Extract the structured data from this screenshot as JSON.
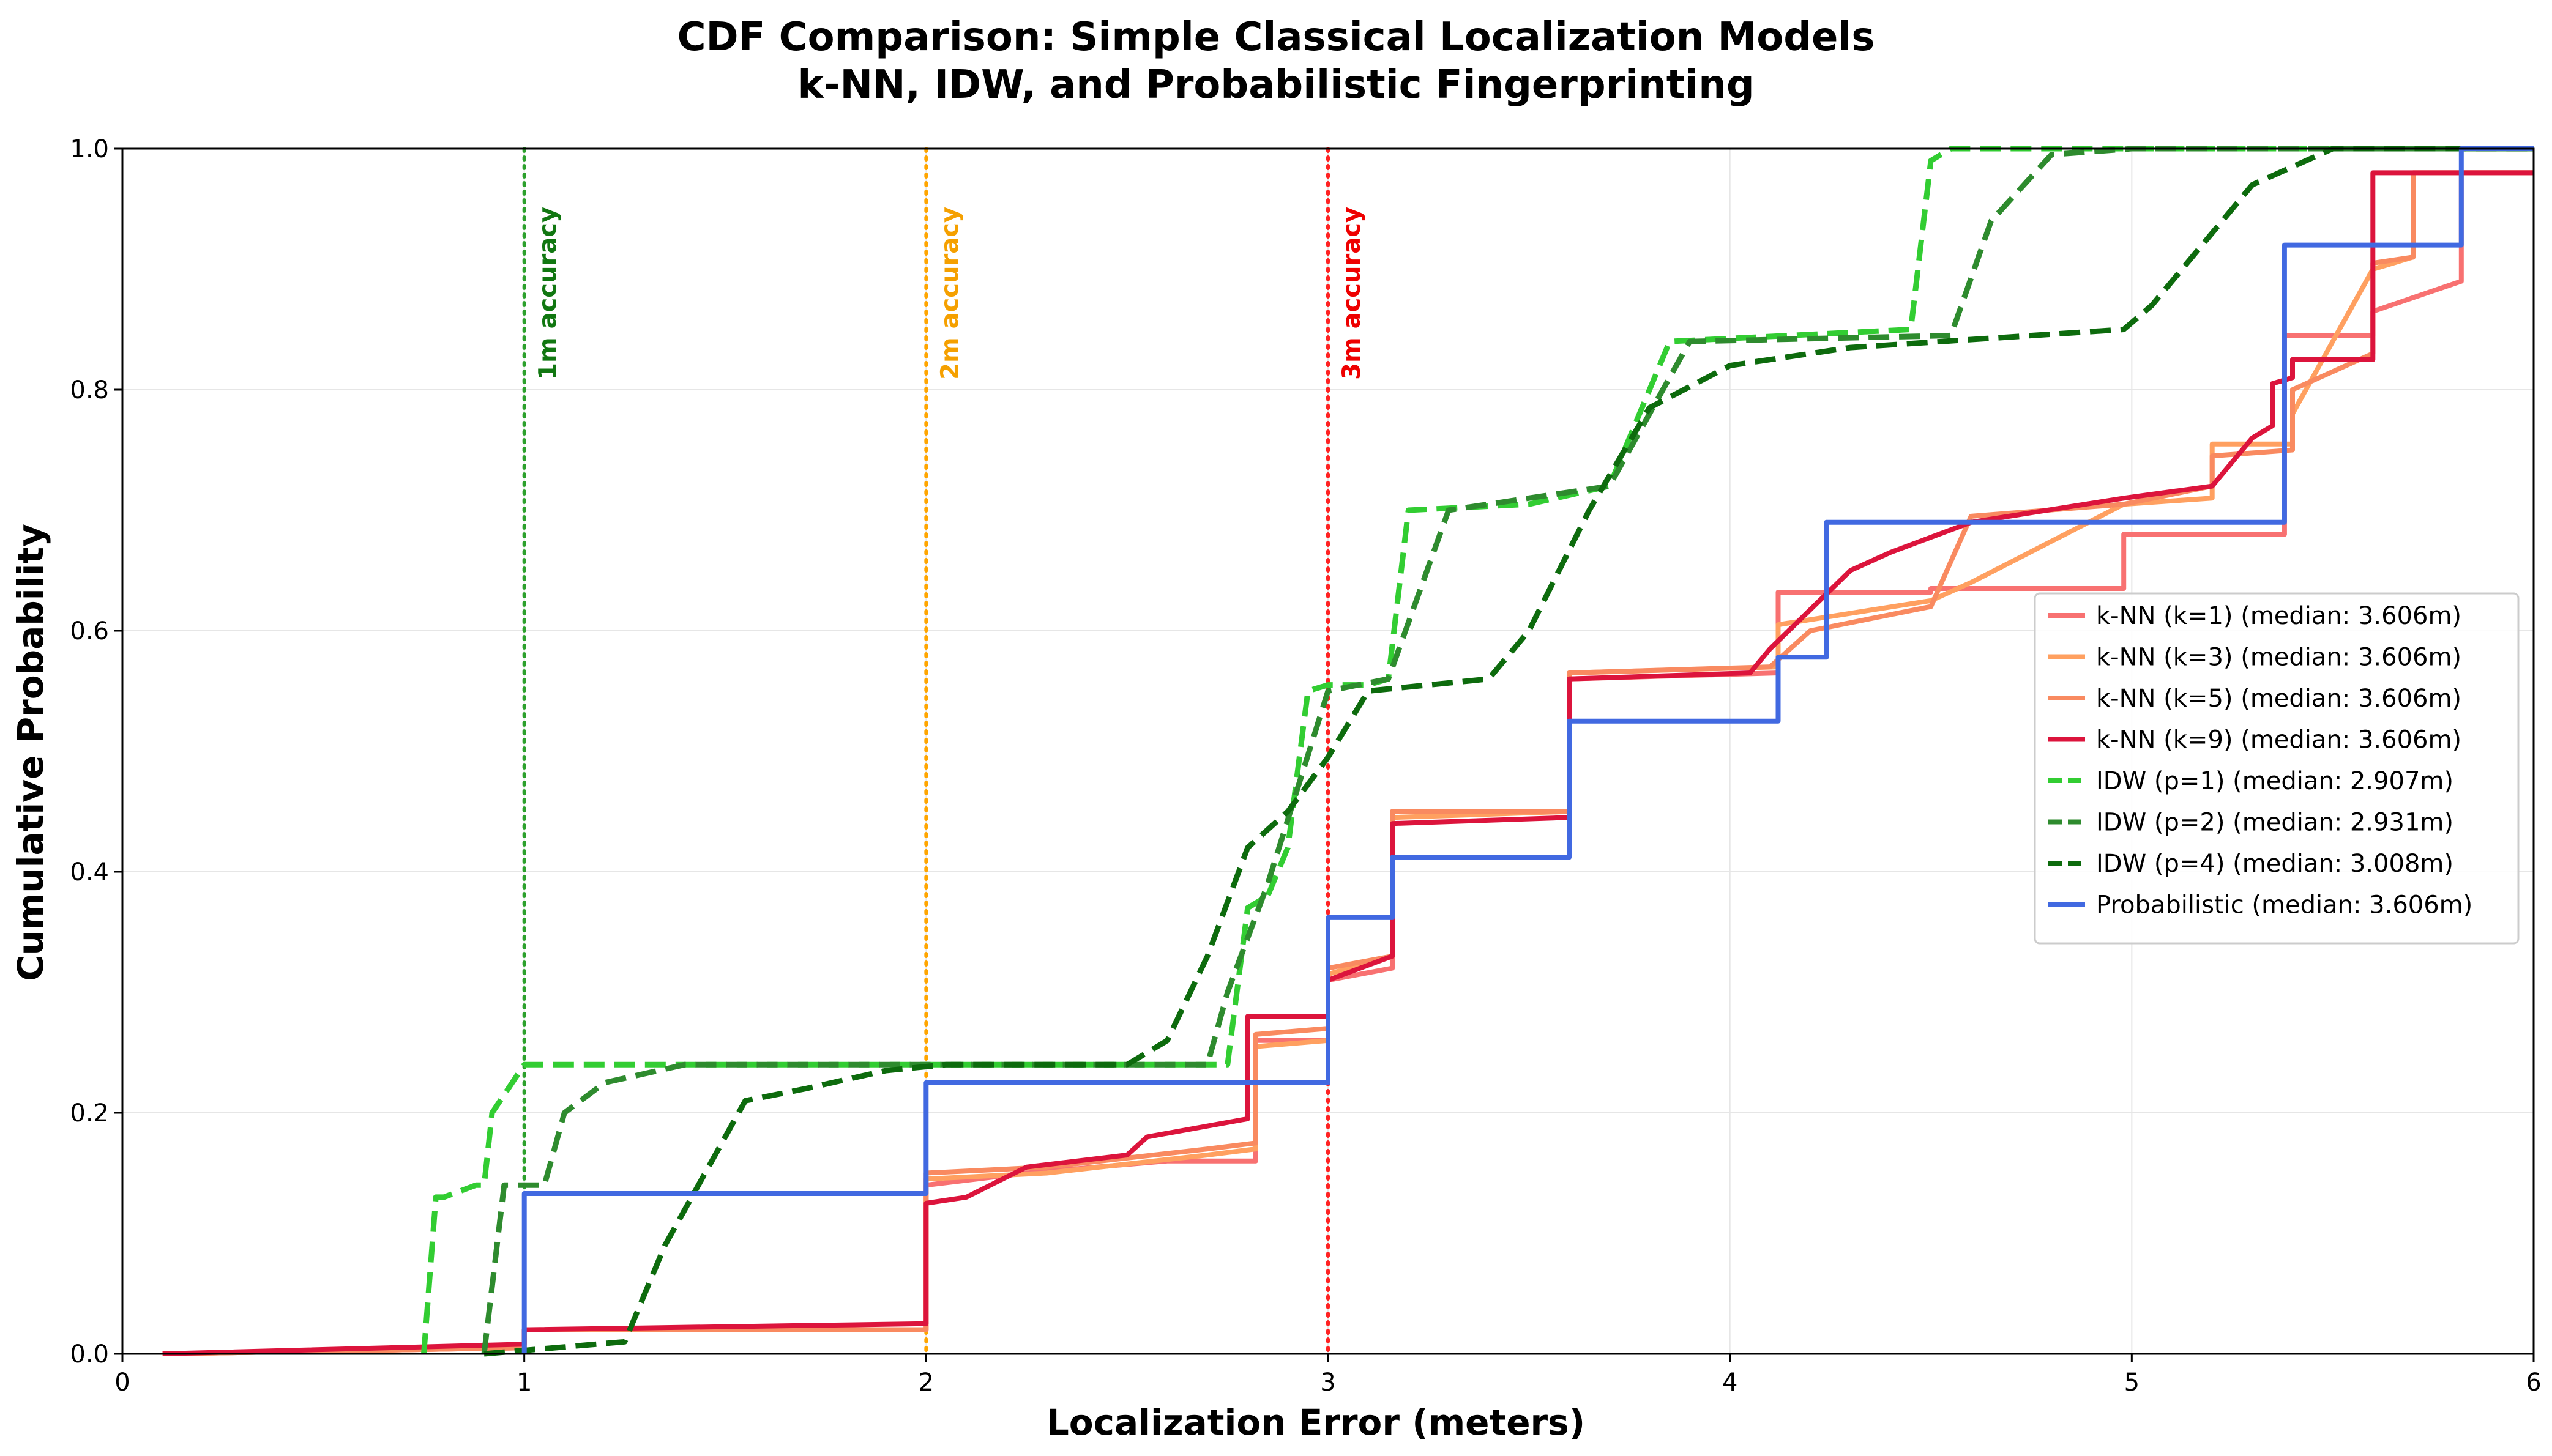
{
  "chart_data": {
    "type": "line",
    "title": "CDF Comparison: Simple Classical Localization Models",
    "subtitle": "k-NN, IDW, and Probabilistic Fingerprinting",
    "xlabel": "Localization Error (meters)",
    "ylabel": "Cumulative Probability",
    "xlim": [
      0,
      6
    ],
    "ylim": [
      0,
      1
    ],
    "xticks": [
      "0",
      "1",
      "2",
      "3",
      "4",
      "5",
      "6"
    ],
    "yticks": [
      "0.0",
      "0.2",
      "0.4",
      "0.6",
      "0.8",
      "1.0"
    ],
    "grid": true,
    "legend_position": "center-right",
    "reference_lines": [
      {
        "x": 1,
        "label": "1m accuracy",
        "color": "#2ca02c",
        "text_color": "#117711"
      },
      {
        "x": 2,
        "label": "2m accuracy",
        "color": "#ffa500",
        "text_color": "#f5a000"
      },
      {
        "x": 3,
        "label": "3m accuracy",
        "color": "#ff2222",
        "text_color": "#ee0000"
      }
    ],
    "series": [
      {
        "name": "k-NN (k=1) (median: 3.606m)",
        "color": "#f87171",
        "dash": "solid",
        "x": [
          0.1,
          1.0,
          1.0,
          2.0,
          2.0,
          2.25,
          2.6,
          2.82,
          2.82,
          3.0,
          3.0,
          3.16,
          3.16,
          3.6,
          3.6,
          4.12,
          4.12,
          4.5,
          4.5,
          4.98,
          4.98,
          5.38,
          5.38,
          5.6,
          5.6,
          5.82,
          5.82,
          6.0
        ],
        "y": [
          0.0,
          0.005,
          0.02,
          0.02,
          0.14,
          0.15,
          0.16,
          0.16,
          0.26,
          0.26,
          0.31,
          0.32,
          0.45,
          0.45,
          0.56,
          0.565,
          0.632,
          0.632,
          0.635,
          0.635,
          0.68,
          0.68,
          0.845,
          0.845,
          0.865,
          0.89,
          0.98,
          0.98
        ]
      },
      {
        "name": "k-NN (k=3) (median: 3.606m)",
        "color": "#ffa060",
        "dash": "solid",
        "x": [
          0.1,
          1.0,
          1.0,
          2.0,
          2.0,
          2.3,
          2.7,
          2.82,
          2.82,
          3.0,
          3.0,
          3.16,
          3.16,
          3.6,
          3.6,
          4.12,
          4.12,
          4.5,
          4.6,
          4.6,
          4.98,
          5.2,
          5.2,
          5.4,
          5.4,
          5.6,
          5.7,
          5.7,
          6.0
        ],
        "y": [
          0.0,
          0.005,
          0.02,
          0.02,
          0.145,
          0.15,
          0.165,
          0.17,
          0.255,
          0.26,
          0.315,
          0.33,
          0.445,
          0.45,
          0.565,
          0.57,
          0.605,
          0.625,
          0.64,
          0.64,
          0.705,
          0.71,
          0.755,
          0.755,
          0.78,
          0.9,
          0.91,
          0.98,
          0.98
        ]
      },
      {
        "name": "k-NN (k=5) (median: 3.606m)",
        "color": "#f98a60",
        "dash": "solid",
        "x": [
          0.1,
          1.0,
          1.0,
          2.0,
          2.0,
          2.3,
          2.7,
          2.82,
          2.82,
          3.0,
          3.0,
          3.16,
          3.16,
          3.6,
          3.6,
          4.1,
          4.2,
          4.5,
          4.6,
          4.98,
          5.2,
          5.2,
          5.4,
          5.4,
          5.6,
          5.6,
          5.7,
          5.7,
          6.0
        ],
        "y": [
          0.0,
          0.005,
          0.02,
          0.02,
          0.15,
          0.155,
          0.17,
          0.175,
          0.265,
          0.27,
          0.32,
          0.33,
          0.45,
          0.45,
          0.565,
          0.57,
          0.6,
          0.62,
          0.695,
          0.705,
          0.72,
          0.745,
          0.75,
          0.8,
          0.83,
          0.905,
          0.91,
          0.98,
          0.98
        ]
      },
      {
        "name": "k-NN (k=9) (median: 3.606m)",
        "color": "#dc143c",
        "dash": "solid",
        "x": [
          0.1,
          1.0,
          1.0,
          2.0,
          2.0,
          2.1,
          2.25,
          2.5,
          2.55,
          2.8,
          2.8,
          3.0,
          3.0,
          3.16,
          3.16,
          3.6,
          3.6,
          4.05,
          4.1,
          4.3,
          4.4,
          4.6,
          4.98,
          5.2,
          5.3,
          5.35,
          5.35,
          5.4,
          5.4,
          5.6,
          5.6,
          6.0
        ],
        "y": [
          0.0,
          0.008,
          0.02,
          0.025,
          0.125,
          0.13,
          0.155,
          0.165,
          0.18,
          0.195,
          0.28,
          0.28,
          0.31,
          0.33,
          0.44,
          0.445,
          0.56,
          0.565,
          0.585,
          0.65,
          0.665,
          0.69,
          0.71,
          0.72,
          0.76,
          0.77,
          0.805,
          0.81,
          0.825,
          0.825,
          0.98,
          0.98
        ]
      },
      {
        "name": "IDW (p=1) (median: 2.907m)",
        "color": "#32cd32",
        "dash": "dashed",
        "x": [
          0.75,
          0.78,
          0.8,
          0.88,
          0.9,
          0.92,
          1.0,
          1.3,
          2.75,
          2.8,
          2.85,
          2.9,
          2.95,
          3.0,
          3.1,
          3.15,
          3.2,
          3.5,
          3.7,
          3.85,
          4.45,
          4.5,
          4.55,
          6.0
        ],
        "y": [
          0.0,
          0.13,
          0.13,
          0.14,
          0.14,
          0.2,
          0.24,
          0.24,
          0.24,
          0.37,
          0.38,
          0.42,
          0.55,
          0.555,
          0.555,
          0.56,
          0.7,
          0.705,
          0.72,
          0.84,
          0.85,
          0.99,
          1.0,
          1.0
        ]
      },
      {
        "name": "IDW (p=2) (median: 2.931m)",
        "color": "#2e8b2e",
        "dash": "dashed",
        "x": [
          0.9,
          0.95,
          1.05,
          1.1,
          1.2,
          1.4,
          2.7,
          2.75,
          2.85,
          3.0,
          3.15,
          3.3,
          3.7,
          3.8,
          3.9,
          4.55,
          4.65,
          4.8,
          5.0,
          6.0
        ],
        "y": [
          0.0,
          0.14,
          0.14,
          0.2,
          0.225,
          0.24,
          0.24,
          0.3,
          0.39,
          0.55,
          0.56,
          0.7,
          0.72,
          0.78,
          0.84,
          0.845,
          0.94,
          0.995,
          1.0,
          1.0
        ]
      },
      {
        "name": "IDW (p=4) (median: 3.008m)",
        "color": "#0d6b0d",
        "dash": "dashed",
        "x": [
          0.9,
          1.25,
          1.35,
          1.45,
          1.55,
          1.7,
          1.9,
          2.05,
          2.5,
          2.6,
          2.7,
          2.8,
          2.9,
          3.0,
          3.1,
          3.4,
          3.5,
          3.65,
          3.8,
          4.0,
          4.3,
          4.98,
          5.05,
          5.3,
          5.5,
          6.0
        ],
        "y": [
          0.0,
          0.01,
          0.09,
          0.15,
          0.21,
          0.22,
          0.235,
          0.24,
          0.24,
          0.26,
          0.33,
          0.42,
          0.45,
          0.495,
          0.55,
          0.56,
          0.6,
          0.7,
          0.785,
          0.82,
          0.835,
          0.85,
          0.87,
          0.97,
          1.0,
          1.0
        ]
      },
      {
        "name": "Probabilistic (median: 3.606m)",
        "color": "#4169e1",
        "dash": "solid",
        "x": [
          1.0,
          1.0,
          2.0,
          2.0,
          3.0,
          3.0,
          3.16,
          3.16,
          3.6,
          3.6,
          4.12,
          4.12,
          4.24,
          4.24,
          5.38,
          5.38,
          5.82,
          5.82,
          6.0
        ],
        "y": [
          0.0,
          0.133,
          0.133,
          0.225,
          0.225,
          0.362,
          0.362,
          0.412,
          0.412,
          0.525,
          0.525,
          0.578,
          0.578,
          0.69,
          0.69,
          0.92,
          0.92,
          1.0,
          1.0
        ]
      }
    ]
  }
}
